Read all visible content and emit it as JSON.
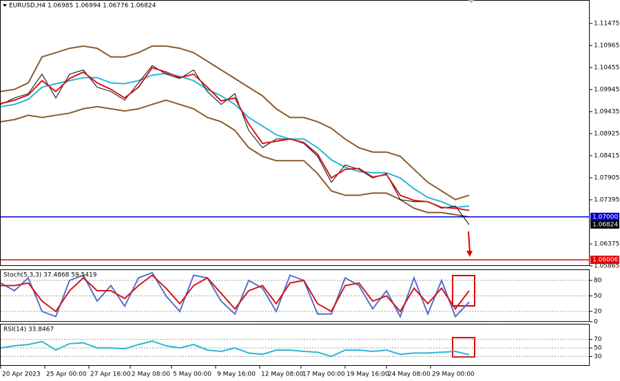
{
  "chart_data": [
    {
      "type": "line",
      "title": "EURUSD,H4 1.06985 1.06994 1.06776 1.06824",
      "x": [
        0,
        5,
        10,
        15,
        20,
        25,
        30,
        35,
        40,
        45,
        50,
        55,
        60,
        65,
        70,
        75,
        80,
        85,
        90,
        95,
        100,
        105,
        110,
        115,
        120,
        125,
        130,
        135,
        140,
        145,
        150,
        155,
        160,
        165,
        170
      ],
      "xlim": [
        0,
        213.75
      ],
      "ylim": [
        1.05865,
        1.12001
      ],
      "yticks": [
        1.11475,
        1.10965,
        1.10455,
        1.09945,
        1.09435,
        1.08925,
        1.08415,
        1.07905,
        1.07395,
        1.06375,
        1.05865
      ],
      "series": [
        {
          "color": "#8b5a2b",
          "values": [
            1.099,
            1.0995,
            1.101,
            1.107,
            1.108,
            1.109,
            1.1095,
            1.109,
            1.107,
            1.107,
            1.108,
            1.1095,
            1.1095,
            1.109,
            1.108,
            1.106,
            1.104,
            1.102,
            1.1,
            1.098,
            1.095,
            1.093,
            1.093,
            1.092,
            1.0905,
            1.088,
            1.086,
            1.085,
            1.085,
            1.084,
            1.081,
            1.078,
            1.076,
            1.074,
            1.075
          ]
        },
        {
          "color": "#8b5a2b",
          "values": [
            1.092,
            1.0925,
            1.0935,
            1.093,
            1.0935,
            1.094,
            1.095,
            1.0955,
            1.095,
            1.0945,
            1.095,
            1.096,
            1.097,
            1.096,
            1.095,
            1.093,
            1.092,
            1.09,
            1.086,
            1.084,
            1.083,
            1.083,
            1.083,
            1.08,
            1.076,
            1.075,
            1.075,
            1.0755,
            1.0755,
            1.074,
            1.072,
            1.071,
            1.071,
            1.0705,
            1.07
          ]
        },
        {
          "color": "#29b6d8",
          "values": [
            1.0955,
            1.096,
            1.0972,
            1.1,
            1.1008,
            1.1015,
            1.1022,
            1.1022,
            1.101,
            1.1008,
            1.1015,
            1.1028,
            1.1032,
            1.1025,
            1.1015,
            1.0995,
            1.098,
            1.096,
            1.093,
            1.091,
            1.089,
            1.088,
            1.088,
            1.086,
            1.0832,
            1.0815,
            1.0805,
            1.0802,
            1.0802,
            1.079,
            1.0765,
            1.0745,
            1.0735,
            1.0722,
            1.0725
          ]
        },
        {
          "color": "#000000",
          "values": [
            1.096,
            1.0975,
            1.0985,
            1.103,
            1.0975,
            1.103,
            1.104,
            1.1,
            1.099,
            1.097,
            1.101,
            1.105,
            1.103,
            1.102,
            1.104,
            1.099,
            1.096,
            1.0985,
            1.09,
            1.086,
            1.088,
            1.088,
            1.087,
            1.084,
            1.078,
            1.082,
            1.081,
            1.079,
            1.08,
            1.074,
            1.0735,
            1.0735,
            1.072,
            1.0725,
            1.0682
          ]
        },
        {
          "color": "#d0161b",
          "values": [
            1.0962,
            1.097,
            1.0982,
            1.1015,
            1.099,
            1.102,
            1.1035,
            1.101,
            1.0995,
            1.0975,
            1.1,
            1.1045,
            1.1035,
            1.1022,
            1.103,
            1.1,
            1.0968,
            1.0975,
            1.0915,
            1.087,
            1.0875,
            1.088,
            1.0872,
            1.0845,
            1.079,
            1.081,
            1.0812,
            1.0792,
            1.0798,
            1.075,
            1.0738,
            1.0735,
            1.0722,
            1.072,
            1.0715
          ]
        }
      ],
      "hlines": [
        {
          "value": 1.07,
          "label": "1.07000",
          "color": "#0000cc"
        },
        {
          "value": 1.06006,
          "label": "1.06006",
          "color": "#e00000"
        },
        {
          "value": 1.06824,
          "label": "1.06824",
          "color": "#000000"
        }
      ]
    },
    {
      "type": "line",
      "title": "Stoch(5,3,3) 37.4868 59.5419",
      "x": [
        0,
        5,
        10,
        15,
        20,
        25,
        30,
        35,
        40,
        45,
        50,
        55,
        60,
        65,
        70,
        75,
        80,
        85,
        90,
        95,
        100,
        105,
        110,
        115,
        120,
        125,
        130,
        135,
        140,
        145,
        150,
        155,
        160,
        165,
        170
      ],
      "xlim": [
        0,
        213.75
      ],
      "ylim": [
        0,
        100
      ],
      "yticks": [
        80,
        50,
        20,
        0
      ],
      "series": [
        {
          "color": "#5470c6",
          "values": [
            75,
            60,
            85,
            20,
            10,
            80,
            90,
            40,
            70,
            30,
            85,
            95,
            50,
            20,
            90,
            85,
            40,
            15,
            80,
            65,
            20,
            90,
            80,
            15,
            15,
            85,
            70,
            25,
            60,
            10,
            85,
            15,
            80,
            10,
            38
          ]
        },
        {
          "color": "#d0161b",
          "values": [
            70,
            70,
            75,
            40,
            20,
            60,
            85,
            60,
            60,
            45,
            70,
            90,
            65,
            35,
            70,
            85,
            55,
            25,
            60,
            70,
            35,
            75,
            80,
            35,
            20,
            70,
            75,
            40,
            50,
            20,
            65,
            35,
            65,
            25,
            60
          ]
        }
      ]
    },
    {
      "type": "line",
      "title": "RSI(14) 33.8467",
      "x": [
        0,
        5,
        10,
        15,
        20,
        25,
        30,
        35,
        40,
        45,
        50,
        55,
        60,
        65,
        70,
        75,
        80,
        85,
        90,
        95,
        100,
        105,
        110,
        115,
        120,
        125,
        130,
        135,
        140,
        145,
        150,
        155,
        160,
        165,
        170
      ],
      "xlim": [
        0,
        213.75
      ],
      "ylim": [
        8,
        105
      ],
      "yticks": [
        70,
        50,
        30
      ],
      "xticks": [
        {
          "value": 0,
          "label": "20 Apr 2023"
        },
        {
          "value": 16,
          "label": "25 Apr 00:00"
        },
        {
          "value": 32,
          "label": "27 Apr 16:00"
        },
        {
          "value": 47,
          "label": "2 May 08:00"
        },
        {
          "value": 62,
          "label": "5 May 00:00"
        },
        {
          "value": 78,
          "label": "9 May 16:00"
        },
        {
          "value": 94,
          "label": "12 May 08:00"
        },
        {
          "value": 109,
          "label": "17 May 00:00"
        },
        {
          "value": 125,
          "label": "19 May 16:00"
        },
        {
          "value": 140,
          "label": "24 May 08:00"
        },
        {
          "value": 156,
          "label": "29 May 00:00"
        }
      ],
      "series": [
        {
          "color": "#29b6d8",
          "values": [
            50,
            55,
            58,
            65,
            45,
            60,
            62,
            50,
            50,
            48,
            58,
            66,
            55,
            50,
            58,
            45,
            42,
            50,
            38,
            35,
            45,
            45,
            42,
            40,
            30,
            45,
            45,
            42,
            45,
            35,
            38,
            38,
            40,
            42,
            34
          ]
        }
      ]
    }
  ]
}
